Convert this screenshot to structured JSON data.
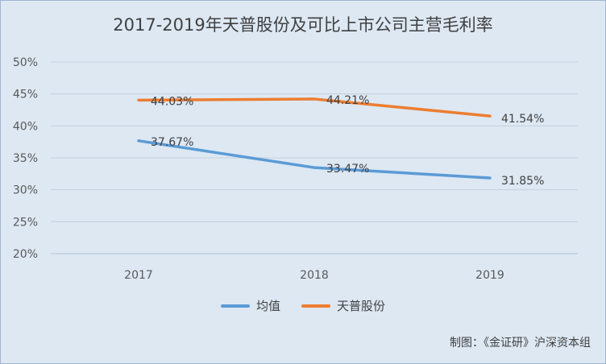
{
  "chart_data": {
    "type": "line",
    "title": "2017-2019年天普股份及可比上市公司主营毛利率",
    "categories": [
      "2017",
      "2018",
      "2019"
    ],
    "yticks": [
      "20%",
      "25%",
      "30%",
      "35%",
      "40%",
      "45%",
      "50%"
    ],
    "ylim": [
      20,
      50
    ],
    "grid": true,
    "legend_position": "bottom",
    "series": [
      {
        "name": "均值",
        "color": "#5b9bd5",
        "values": [
          37.67,
          33.47,
          31.85
        ],
        "labels": [
          "37.67%",
          "33.47%",
          "31.85%"
        ]
      },
      {
        "name": "天普股份",
        "color": "#ed7d31",
        "values": [
          44.03,
          44.21,
          41.54
        ],
        "labels": [
          "44.03%",
          "44.21%",
          "41.54%"
        ]
      }
    ]
  },
  "credit": "制图：《金证研》沪深资本组"
}
